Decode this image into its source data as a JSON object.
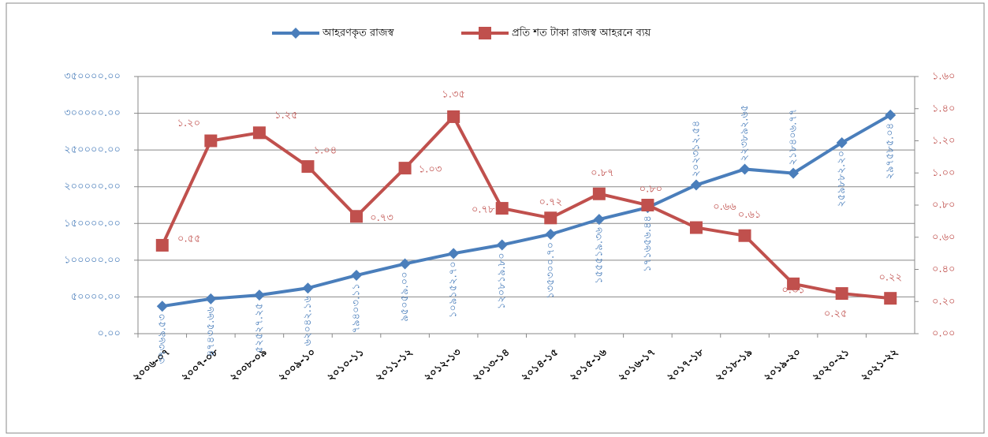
{
  "chart_data": {
    "type": "line",
    "categories": [
      "২০০৬-০৭",
      "২০০৭-০৮",
      "২০০৮-০৯",
      "২০০৯-১০",
      "২০১০-১১",
      "২০১১-১২",
      "২০১২-১৩",
      "২০১৩-১৪",
      "২০১৪-১৫",
      "২০১৫-১৬",
      "২০১৬-১৭",
      "২০১৭-১৮",
      "২০১৮-১৯",
      "২০১৯-২০",
      "২০২০-২১",
      "২০২১-২২"
    ],
    "series": [
      {
        "name": "আহরণকৃত রাজস্ব",
        "color": "#4a7ebb",
        "marker": "diamond",
        "values": [
          37369.53,
          47435.66,
          52527.25,
          62042.16,
          79403.11,
          95059.0,
          109152.7,
          120819.8,
          135300.7,
          155519.36,
          171656.44,
          202312.54,
          223892.65,
          218406.77,
          259882.2,
          297585.04
        ],
        "value_labels": [
          "৩৭৩৬৯.৫৩",
          "৪৭৪৩৫.৬৬",
          "৫২৫২৭.২৫",
          "৬২০৪২.১৬",
          "৭৯৪০৩.১১",
          "৯৫০৫৯.০০",
          "১০৯১৫২.৭০",
          "১২০৮১৯.৮০",
          "১৩৫৩০০.৭০",
          "১৫৫৫১৯.৩৬",
          "১৭১৬৫৬.৪৪",
          "২০২৩১২.৫৪",
          "২২৩৮৯২.৬৫",
          "২১৮৪০৬.৭৭",
          "২৫৯৮৮২.২০",
          "২৯৭৫৮৫.০৪"
        ]
      },
      {
        "name": "প্রতি শত টাকা রাজস্ব আহরনে   ব্যয়",
        "color": "#c0504d",
        "marker": "square",
        "axis": "y2",
        "values": [
          0.55,
          1.2,
          1.25,
          1.04,
          0.73,
          1.03,
          1.35,
          0.78,
          0.72,
          0.87,
          0.8,
          0.66,
          0.61,
          0.31,
          0.25,
          0.22
        ],
        "value_labels": [
          "০.৫৫",
          "১.২০",
          "১.২৫",
          "১.০৪",
          "০.৭৩",
          "১.০৩",
          "১.৩৫",
          "০.৭৮",
          "০.৭২",
          "০.৮৭",
          "০.৮০",
          "০.৬৬",
          "০.৬১",
          "০.৩১",
          "০.২৫",
          "০.২২"
        ]
      }
    ],
    "ylim": [
      0,
      350000
    ],
    "yticks": [
      {
        "value": 0,
        "label": "০.০০"
      },
      {
        "value": 50000,
        "label": "৫০০০০.০০"
      },
      {
        "value": 100000,
        "label": "১০০০০০.০০"
      },
      {
        "value": 150000,
        "label": "১৫০০০০.০০"
      },
      {
        "value": 200000,
        "label": "২০০০০০.০০"
      },
      {
        "value": 250000,
        "label": "২৫০০০০.০০"
      },
      {
        "value": 300000,
        "label": "৩০০০০০.০০"
      },
      {
        "value": 350000,
        "label": "৩৫০০০০.০০"
      }
    ],
    "y2lim": [
      0,
      1.6
    ],
    "y2ticks": [
      {
        "value": 0,
        "label": "০.০০"
      },
      {
        "value": 0.2,
        "label": "০.২০"
      },
      {
        "value": 0.4,
        "label": "০.৪০"
      },
      {
        "value": 0.6,
        "label": "০.৬০"
      },
      {
        "value": 0.8,
        "label": "০.৮০"
      },
      {
        "value": 1.0,
        "label": "১.০০"
      },
      {
        "value": 1.2,
        "label": "১.২০"
      },
      {
        "value": 1.4,
        "label": "১.৪০"
      },
      {
        "value": 1.6,
        "label": "১.৬০"
      }
    ],
    "grid": true,
    "legend": "top"
  }
}
